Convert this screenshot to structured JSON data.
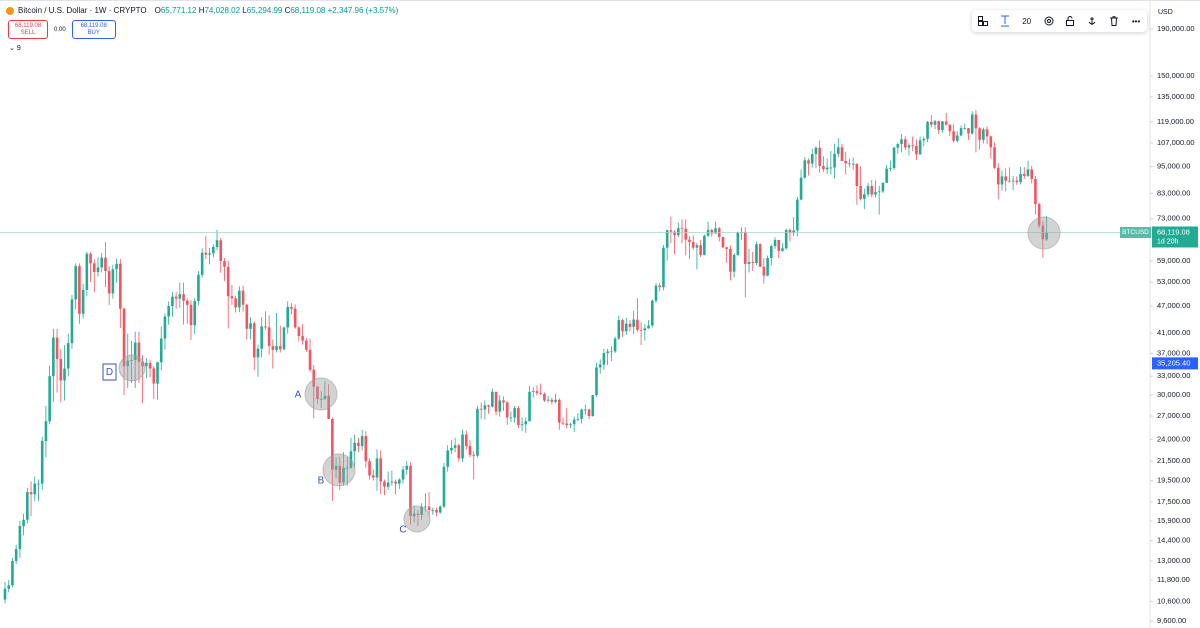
{
  "chart_data": {
    "type": "candlestick",
    "title": "Bitcoin / U.S. Dollar · 1W · CRYPTO",
    "currency": "USD",
    "log_scale": true,
    "grid": false,
    "up_color": "#22ab94",
    "down_color": "#f7525f",
    "ylim": [
      9270,
      220000
    ],
    "yticks": [
      {
        "value": 190000,
        "label": "190,000.00"
      },
      {
        "value": 150000,
        "label": "150,000.00"
      },
      {
        "value": 135000,
        "label": "135,000.00"
      },
      {
        "value": 119000,
        "label": "119,000.00"
      },
      {
        "value": 107000,
        "label": "107,000.00"
      },
      {
        "value": 95000,
        "label": "95,000.00"
      },
      {
        "value": 83000,
        "label": "83,000.00"
      },
      {
        "value": 73000,
        "label": "73,000.00"
      },
      {
        "value": 59000,
        "label": "59,000.00"
      },
      {
        "value": 53000,
        "label": "53,000.00"
      },
      {
        "value": 47000,
        "label": "47,000.00"
      },
      {
        "value": 41000,
        "label": "41,000.00"
      },
      {
        "value": 37000,
        "label": "37,000.00"
      },
      {
        "value": 33000,
        "label": "33,000.00"
      },
      {
        "value": 30000,
        "label": "30,000.00"
      },
      {
        "value": 27000,
        "label": "27,000.00"
      },
      {
        "value": 24000,
        "label": "24,000.00"
      },
      {
        "value": 21500,
        "label": "21,500.00"
      },
      {
        "value": 19500,
        "label": "19,500.00"
      },
      {
        "value": 17500,
        "label": "17,500.00"
      },
      {
        "value": 15900,
        "label": "15,900.00"
      },
      {
        "value": 14400,
        "label": "14,400.00"
      },
      {
        "value": 13000,
        "label": "13,000.00"
      },
      {
        "value": 11800,
        "label": "11,800.00"
      },
      {
        "value": 10600,
        "label": "10,600.00"
      },
      {
        "value": 9600,
        "label": "9,600.00"
      }
    ],
    "last_price": {
      "value": 68119.08,
      "label": "68,119.08",
      "symbol": "BTCUSD",
      "countdown": "1d 20h"
    },
    "marker_price": {
      "value": 35205.4,
      "label": "35,205.40"
    },
    "annotations": [
      "D",
      "A",
      "B",
      "C"
    ],
    "open": [
      10700,
      11300,
      11500,
      13000,
      13800,
      15500,
      16000,
      18400,
      18200,
      19200,
      19200,
      23800,
      26300,
      33000,
      40100,
      36000,
      32300,
      34300,
      39000,
      48600,
      57500,
      45200,
      51000,
      61200,
      58300,
      55800,
      57100,
      60000,
      56100,
      50100,
      56600,
      58200,
      46400,
      34700,
      35700,
      35800,
      39100,
      35500,
      34700,
      35300,
      34300,
      31800,
      35400,
      39900,
      44600,
      47000,
      49300,
      48800,
      49900,
      48300,
      47300,
      42700,
      48200,
      55000,
      61500,
      60900,
      61300,
      63300,
      65500,
      59000,
      57300,
      49400,
      48900,
      46700,
      50800,
      47300,
      41900,
      43100,
      36300,
      37900,
      42400,
      42200,
      38400,
      37700,
      38400,
      37800,
      42200,
      46800,
      46400,
      42200,
      40400,
      39500,
      37700,
      34100,
      31300,
      29400,
      29400,
      29900,
      26600,
      20600,
      21000,
      19300,
      20800,
      20800,
      22600,
      23600,
      23200,
      24400,
      21500,
      20000,
      19800,
      21800,
      19400,
      18900,
      19300,
      19400,
      19200,
      19600,
      20600,
      21000,
      16300,
      16500,
      16400,
      17100,
      17100,
      16800,
      16800,
      16600,
      17100,
      20900,
      22700,
      23000,
      23300,
      21800,
      24600,
      23200,
      22200,
      22100,
      28000,
      27900,
      28500,
      28300,
      30500,
      27600,
      29200,
      28900,
      26800,
      26800,
      28100,
      25800,
      25900,
      26300,
      30500,
      30600,
      30300,
      30200,
      29200,
      29300,
      29000,
      29300,
      26100,
      26000,
      25800,
      25900,
      26500,
      26600,
      27900,
      27900,
      27000,
      30000,
      34500,
      35000,
      37100,
      37400,
      37400,
      39900,
      43800,
      41400,
      43000,
      42300,
      43900,
      41700,
      41600,
      42000,
      42600,
      48300,
      52100,
      51700,
      63100,
      68900,
      68400,
      67200,
      69600,
      69400,
      65700,
      64900,
      63100,
      63900,
      60800,
      67000,
      69000,
      67800,
      69600,
      66600,
      63200,
      62700,
      55900,
      60800,
      68200,
      68300,
      58100,
      58700,
      58400,
      64200,
      57300,
      54800,
      59900,
      63600,
      65600,
      62100,
      62900,
      69000,
      67900,
      68800,
      80400,
      89800,
      98000,
      96400,
      101100,
      104400,
      95200,
      93700,
      94500,
      94500,
      101300,
      104700,
      97700,
      96500,
      96100,
      96300,
      86100,
      80700,
      82600,
      86100,
      82500,
      83500,
      83800,
      87500,
      94000,
      94300,
      104500,
      106400,
      109000,
      104600,
      105700,
      105500,
      101000,
      108400,
      109200,
      119000,
      117300,
      119400,
      114200,
      119300,
      117400,
      113500,
      108200,
      111100,
      115300,
      115300,
      112200,
      123500,
      115200,
      108700,
      114600,
      110600,
      104700,
      94400,
      86800,
      90400,
      88400,
      88200,
      88500,
      87800,
      91500,
      90600,
      93600,
      89200,
      78600,
      70500,
      65771.12
    ],
    "high": [
      11700,
      11800,
      13200,
      14100,
      15900,
      16500,
      18800,
      19400,
      19900,
      19600,
      24300,
      28400,
      34800,
      41900,
      41900,
      37800,
      38600,
      40900,
      49700,
      58300,
      58300,
      52600,
      61800,
      61700,
      59500,
      60100,
      61500,
      64900,
      57500,
      57900,
      59700,
      59600,
      46600,
      40900,
      39400,
      41300,
      41300,
      36700,
      36100,
      35900,
      34700,
      35500,
      42400,
      45300,
      48100,
      50500,
      50400,
      52900,
      52900,
      48800,
      48400,
      49000,
      56100,
      62900,
      67000,
      63000,
      64200,
      69000,
      66300,
      59900,
      59100,
      52300,
      49500,
      51900,
      52100,
      47600,
      44400,
      43500,
      38700,
      44400,
      45800,
      44800,
      39700,
      45400,
      42600,
      42400,
      48100,
      47700,
      47400,
      42500,
      42900,
      40000,
      39900,
      34900,
      31400,
      30600,
      32200,
      31700,
      26800,
      21900,
      22000,
      22500,
      21900,
      24200,
      24600,
      24200,
      25200,
      25000,
      21800,
      20600,
      22800,
      22700,
      19600,
      20400,
      20500,
      19600,
      19700,
      21000,
      21500,
      21400,
      17200,
      16800,
      17400,
      18300,
      18400,
      17000,
      17000,
      17200,
      21300,
      23300,
      23900,
      24200,
      23500,
      25200,
      25100,
      23900,
      22600,
      28400,
      28900,
      29200,
      28600,
      31000,
      30500,
      30000,
      29800,
      29100,
      27600,
      28400,
      28400,
      26800,
      26800,
      31400,
      31200,
      31500,
      31800,
      30400,
      29900,
      29600,
      30200,
      29500,
      26800,
      28100,
      26100,
      26900,
      27400,
      28000,
      28600,
      28000,
      30000,
      35300,
      35900,
      37900,
      37900,
      38400,
      40300,
      44800,
      44100,
      44300,
      43800,
      45900,
      48900,
      43300,
      42900,
      43800,
      48600,
      52800,
      52900,
      64000,
      69100,
      73800,
      68900,
      71600,
      72800,
      72800,
      66900,
      67200,
      64700,
      65500,
      67400,
      71900,
      69500,
      71900,
      70000,
      66600,
      63400,
      63800,
      61400,
      68400,
      70000,
      70000,
      62700,
      61800,
      65000,
      64500,
      59800,
      60600,
      64100,
      66500,
      65600,
      64500,
      69400,
      69500,
      73600,
      81500,
      93500,
      99600,
      98900,
      103900,
      105200,
      108300,
      99900,
      98900,
      102700,
      106400,
      109600,
      106400,
      102400,
      98900,
      99400,
      96500,
      95000,
      85000,
      87500,
      88800,
      88500,
      86100,
      87700,
      95700,
      97900,
      104900,
      107100,
      111900,
      110700,
      106800,
      110500,
      108900,
      110500,
      110500,
      119500,
      123200,
      120200,
      119800,
      119500,
      124500,
      117600,
      117400,
      113400,
      116800,
      117900,
      115400,
      125600,
      126200,
      115900,
      115500,
      116400,
      111000,
      107400,
      96600,
      93100,
      94100,
      94600,
      90600,
      90400,
      94800,
      94700,
      97900,
      95400,
      90500,
      79300,
      72300,
      74028.02
    ],
    "low": [
      10500,
      11100,
      11400,
      12800,
      13200,
      14800,
      15700,
      16300,
      17600,
      17600,
      18600,
      21900,
      25900,
      29000,
      30400,
      28900,
      29200,
      33000,
      37900,
      46200,
      43000,
      44100,
      49400,
      53000,
      50400,
      54600,
      55700,
      51700,
      47200,
      48800,
      52900,
      42100,
      30000,
      31100,
      31900,
      31100,
      31900,
      28800,
      32700,
      32800,
      29400,
      29300,
      34000,
      37700,
      42800,
      44500,
      46300,
      46600,
      42800,
      43000,
      39600,
      40800,
      47100,
      54200,
      59600,
      58000,
      60100,
      62300,
      55600,
      53300,
      42000,
      47300,
      45500,
      45600,
      45700,
      39700,
      39700,
      34000,
      32900,
      36300,
      41700,
      36800,
      34300,
      37200,
      37200,
      37600,
      40900,
      45100,
      41900,
      39300,
      38700,
      37300,
      33700,
      26700,
      28700,
      28100,
      29300,
      26600,
      17600,
      19700,
      18600,
      19000,
      19000,
      20700,
      20800,
      22500,
      22700,
      20800,
      19600,
      19500,
      18500,
      18200,
      18100,
      18600,
      19000,
      18200,
      18700,
      19200,
      20100,
      15600,
      15800,
      15500,
      16000,
      16700,
      16300,
      16400,
      16300,
      16500,
      17000,
      20400,
      22300,
      22500,
      21400,
      21400,
      22800,
      21900,
      19600,
      21900,
      26600,
      26500,
      27300,
      28200,
      27100,
      26900,
      27700,
      25800,
      26200,
      26100,
      25400,
      25000,
      24800,
      26300,
      29600,
      29900,
      30000,
      29000,
      28900,
      28600,
      28800,
      25200,
      25800,
      25400,
      25400,
      24900,
      26300,
      26000,
      27200,
      26600,
      26900,
      29700,
      33400,
      34100,
      34900,
      35600,
      37100,
      39600,
      40200,
      40600,
      41400,
      40800,
      41300,
      38600,
      39500,
      41900,
      42200,
      47700,
      50600,
      50900,
      59100,
      64600,
      61000,
      66600,
      64500,
      60700,
      59600,
      62400,
      56600,
      60200,
      60700,
      66600,
      66700,
      67600,
      65100,
      63000,
      58500,
      53500,
      54300,
      60600,
      65600,
      49100,
      55700,
      56100,
      57800,
      57200,
      52600,
      54600,
      57600,
      62700,
      59800,
      61800,
      62400,
      65100,
      66900,
      66800,
      80200,
      89400,
      90800,
      94500,
      94200,
      92100,
      92500,
      91500,
      91200,
      89300,
      99500,
      97500,
      91200,
      94700,
      93400,
      78300,
      80100,
      76600,
      81600,
      81300,
      81300,
      74600,
      83100,
      87500,
      92800,
      93400,
      101400,
      102000,
      103100,
      100400,
      102700,
      98200,
      100800,
      105300,
      107500,
      115700,
      114700,
      111900,
      112700,
      116800,
      110700,
      107300,
      107300,
      110600,
      114400,
      108700,
      111600,
      102000,
      103500,
      106800,
      106300,
      98900,
      93900,
      80500,
      84100,
      83800,
      87600,
      84400,
      86600,
      86800,
      89300,
      90100,
      87300,
      74600,
      69700,
      60000,
      65294.99
    ],
    "close": [
      11300,
      11500,
      13000,
      13800,
      15500,
      16000,
      18400,
      18200,
      19200,
      19200,
      23800,
      26300,
      33000,
      40100,
      36000,
      32300,
      34300,
      39000,
      48600,
      57500,
      45200,
      51000,
      61200,
      58300,
      55800,
      57100,
      60000,
      56100,
      50100,
      56600,
      58200,
      46400,
      34700,
      35700,
      35800,
      39100,
      35500,
      34700,
      35300,
      34300,
      31800,
      35400,
      39900,
      44600,
      47000,
      49300,
      48800,
      49900,
      48300,
      47300,
      42700,
      48200,
      55000,
      61500,
      60900,
      61300,
      63300,
      65500,
      59000,
      57300,
      49400,
      48900,
      46700,
      50800,
      47300,
      41900,
      43100,
      36300,
      37900,
      42400,
      42200,
      38400,
      37700,
      38400,
      37800,
      42200,
      46800,
      46400,
      42200,
      40400,
      39500,
      37700,
      34100,
      31300,
      29400,
      29400,
      29900,
      26600,
      20600,
      21000,
      19300,
      20800,
      20800,
      22600,
      23600,
      23200,
      24400,
      21500,
      20000,
      19800,
      21800,
      19400,
      18900,
      19300,
      19400,
      19200,
      19600,
      20600,
      21000,
      16300,
      16500,
      16400,
      17100,
      17100,
      16800,
      16800,
      16600,
      17100,
      20900,
      22700,
      23000,
      23300,
      21800,
      24600,
      23200,
      22200,
      22100,
      28000,
      27900,
      28500,
      28300,
      30500,
      27600,
      29200,
      28900,
      26800,
      26800,
      28100,
      25800,
      25900,
      26300,
      30500,
      30600,
      30300,
      30200,
      29200,
      29300,
      29000,
      29300,
      26100,
      26000,
      25800,
      25900,
      26500,
      26600,
      27900,
      27900,
      27000,
      30000,
      34500,
      35000,
      37100,
      37400,
      37400,
      39900,
      43800,
      41400,
      43000,
      42300,
      43900,
      41700,
      41600,
      42000,
      42600,
      48300,
      52100,
      51700,
      63100,
      68900,
      68400,
      67200,
      69600,
      69400,
      65700,
      64900,
      63100,
      63900,
      60800,
      67000,
      69000,
      67800,
      69600,
      66600,
      63200,
      62700,
      55900,
      60800,
      68200,
      68300,
      58100,
      58700,
      58400,
      64200,
      57300,
      54800,
      59900,
      63600,
      65600,
      62100,
      62900,
      69000,
      67900,
      68800,
      80400,
      89800,
      98000,
      96400,
      101100,
      104400,
      95200,
      93700,
      94500,
      94500,
      101300,
      104700,
      97700,
      96500,
      96100,
      96300,
      86100,
      80700,
      82600,
      86100,
      82500,
      83500,
      83800,
      87500,
      94000,
      94300,
      104500,
      106400,
      109000,
      104600,
      105700,
      105500,
      101000,
      108400,
      109200,
      119000,
      117300,
      119400,
      114200,
      119300,
      117400,
      113500,
      108200,
      111100,
      115300,
      115300,
      112200,
      123500,
      115200,
      108700,
      114600,
      110600,
      104700,
      94400,
      86800,
      90400,
      88400,
      88200,
      88500,
      87800,
      91500,
      90600,
      93600,
      89200,
      78600,
      70500,
      65800,
      68119.08
    ]
  },
  "header": {
    "ohlc": [
      {
        "key": "O",
        "value": "65,771.12"
      },
      {
        "key": "H",
        "value": "74,028.02"
      },
      {
        "key": "L",
        "value": "65,294.99"
      },
      {
        "key": "C",
        "value": "68,119.08"
      }
    ],
    "change": "+2,347.96 (+3.57%)",
    "sell": {
      "price": "68,119.08",
      "label": "SELL"
    },
    "spread": "0.00",
    "buy": {
      "price": "68,119.08",
      "label": "BUY"
    },
    "indicators": 9
  },
  "toolbar": {
    "font_size": 20
  }
}
